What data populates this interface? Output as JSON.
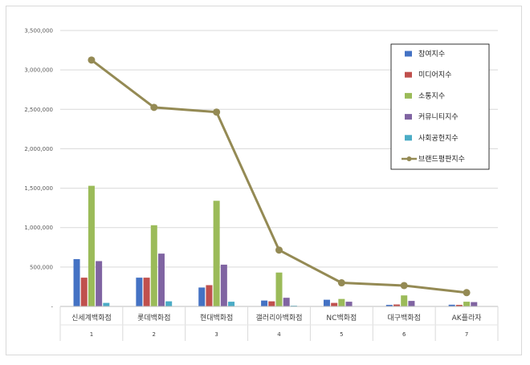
{
  "chart_data": {
    "type": "bar",
    "categories": [
      "신세계백화점",
      "롯데백화점",
      "현대백화점",
      "갤러리아백화점",
      "NC백화점",
      "대구백화점",
      "AK플라자"
    ],
    "category_index": [
      "1",
      "2",
      "3",
      "4",
      "5",
      "6",
      "7"
    ],
    "ylim": [
      0,
      3500000
    ],
    "yticks": [
      "-",
      "500,000",
      "1,000,000",
      "1,500,000",
      "2,000,000",
      "2,500,000",
      "3,000,000",
      "3,500,000"
    ],
    "grid": true,
    "legend_position": "top-right",
    "series": [
      {
        "name": "참여지수",
        "kind": "bar",
        "color": "#4472c4",
        "values": [
          600000,
          365000,
          240000,
          75000,
          85000,
          20000,
          22000
        ]
      },
      {
        "name": "미디어지수",
        "kind": "bar",
        "color": "#c0504d",
        "values": [
          365000,
          365000,
          270000,
          65000,
          45000,
          25000,
          20000
        ]
      },
      {
        "name": "소통지수",
        "kind": "bar",
        "color": "#9bbb59",
        "values": [
          1530000,
          1030000,
          1340000,
          430000,
          95000,
          140000,
          60000
        ]
      },
      {
        "name": "커뮤니티지수",
        "kind": "bar",
        "color": "#8064a2",
        "values": [
          575000,
          670000,
          530000,
          110000,
          60000,
          70000,
          55000
        ]
      },
      {
        "name": "사회공헌지수",
        "kind": "bar",
        "color": "#4bacc6",
        "values": [
          45000,
          65000,
          60000,
          10000,
          0,
          0,
          0
        ]
      },
      {
        "name": "브랜드평판지수",
        "kind": "line",
        "color": "#948a54",
        "values": [
          3125000,
          2525000,
          2465000,
          715000,
          300000,
          265000,
          175000
        ]
      }
    ]
  }
}
